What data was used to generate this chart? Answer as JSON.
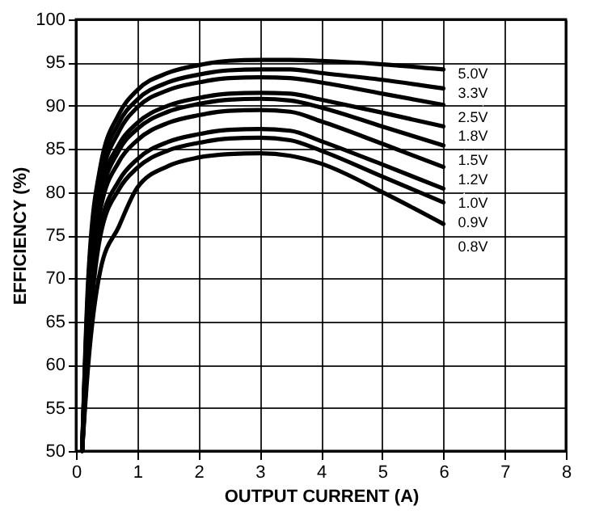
{
  "chart_data": {
    "type": "line",
    "xlabel": "OUTPUT CURRENT (A)",
    "ylabel": "EFFICIENCY (%)",
    "x": [
      0.1,
      0.2,
      0.4,
      0.7,
      1,
      1.5,
      2,
      2.5,
      3,
      3.5,
      4,
      5,
      6
    ],
    "series": [
      {
        "name": "5.0V",
        "color": "#000000",
        "values": [
          50,
          70,
          83,
          89,
          91.8,
          93.8,
          94.7,
          95.2,
          95.3,
          95.3,
          95.2,
          94.8,
          94.2
        ]
      },
      {
        "name": "3.3V",
        "color": "#000000",
        "values": [
          50,
          69,
          82,
          88,
          90.7,
          92.7,
          93.6,
          94.1,
          94.2,
          94.2,
          93.8,
          93.0,
          92.0
        ]
      },
      {
        "name": "2.5V",
        "color": "#000000",
        "values": [
          50,
          68,
          81,
          87,
          89.8,
          91.8,
          92.7,
          93.2,
          93.3,
          93.2,
          92.7,
          91.4,
          90.1
        ]
      },
      {
        "name": "1.8V",
        "color": "#000000",
        "values": [
          50,
          67,
          80,
          85.5,
          88,
          90,
          90.9,
          91.4,
          91.5,
          91.4,
          90.7,
          89.2,
          87.6
        ]
      },
      {
        "name": "1.5V",
        "color": "#000000",
        "values": [
          50,
          66,
          79,
          84.8,
          87.3,
          89.3,
          90.2,
          90.7,
          90.8,
          90.6,
          89.8,
          87.6,
          85.4
        ]
      },
      {
        "name": "1.2V",
        "color": "#000000",
        "values": [
          50,
          65,
          78,
          83.5,
          86,
          88,
          88.9,
          89.4,
          89.5,
          89.3,
          88.2,
          85.6,
          82.9
        ]
      },
      {
        "name": "1.0V",
        "color": "#000000",
        "values": [
          50,
          63,
          76,
          81.3,
          83.8,
          85.8,
          86.7,
          87.2,
          87.3,
          87.1,
          85.9,
          83.2,
          80.4
        ]
      },
      {
        "name": "0.9V",
        "color": "#000000",
        "values": [
          50,
          62,
          75,
          80.3,
          82.8,
          84.8,
          85.7,
          86.2,
          86.3,
          86.0,
          84.8,
          81.8,
          78.8
        ]
      },
      {
        "name": "0.8V",
        "color": "#000000",
        "values": [
          50,
          60,
          71,
          76,
          80.5,
          83,
          84,
          84.4,
          84.5,
          84.2,
          83.3,
          80,
          76.3
        ]
      }
    ],
    "xlim": [
      0,
      8
    ],
    "xticks": [
      0,
      1,
      2,
      3,
      4,
      5,
      6,
      7,
      8
    ],
    "ylim": [
      50,
      100
    ],
    "yticks": [
      50,
      55,
      60,
      65,
      70,
      75,
      80,
      85,
      90,
      95,
      100
    ],
    "grid": true,
    "legend": false,
    "marker": "none",
    "line_style": "solid"
  }
}
